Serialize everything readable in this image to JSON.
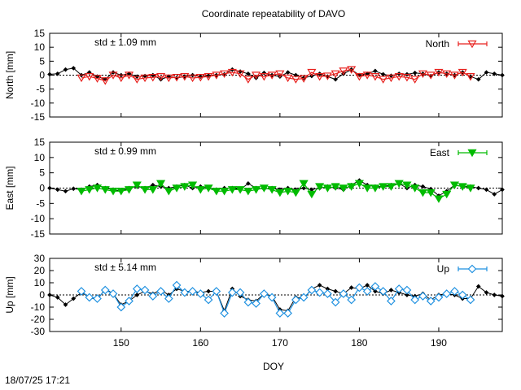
{
  "title": "Coordinate repeatability of DAVO",
  "footer_timestamp": "18/07/25 17:21",
  "chart_data": {
    "type": "line",
    "title": "Coordinate repeatability of DAVO",
    "xlabel": "DOY",
    "xlim": [
      141,
      198
    ],
    "xticks": [
      150,
      160,
      170,
      180,
      190
    ],
    "grid": false,
    "panels": [
      {
        "name": "north",
        "ylabel": "North [mm]",
        "ylim": [
          -15,
          15
        ],
        "yticks": [
          -15,
          -10,
          -5,
          0,
          5,
          10,
          15
        ],
        "std_label": "std ± 1.09 mm",
        "std_color": "#ff0000",
        "legend": "North",
        "legend_position": "top-right",
        "marker": "triangle-down-open",
        "color": "#e8221f",
        "reference": {
          "x": [
            141,
            142,
            143,
            144,
            145,
            146,
            147,
            148,
            149,
            150,
            151,
            152,
            153,
            154,
            155,
            156,
            157,
            158,
            159,
            160,
            161,
            162,
            163,
            164,
            165,
            166,
            167,
            168,
            169,
            170,
            171,
            172,
            173,
            174,
            175,
            176,
            177,
            178,
            179,
            180,
            181,
            182,
            183,
            184,
            185,
            186,
            187,
            188,
            189,
            190,
            191,
            192,
            193,
            194,
            195,
            196,
            197,
            198
          ],
          "y": [
            0.3,
            0.5,
            2,
            2.5,
            0,
            1,
            -0.5,
            -1.5,
            1,
            0,
            0.5,
            -0.5,
            -0.3,
            0,
            -1.5,
            -0.5,
            -1,
            -0.5,
            0,
            -0.5,
            -0.2,
            0,
            0.3,
            2,
            1.3,
            0.5,
            -1,
            0.8,
            0,
            -0.5,
            1,
            0,
            -1,
            -0.3,
            0.5,
            -0.5,
            -1.5,
            0.5,
            2,
            0,
            0.5,
            1.5,
            0.3,
            -0.2,
            0.5,
            0.3,
            0.8,
            0.5,
            -0.3,
            1,
            0.5,
            0,
            1,
            -0.5,
            -1.5,
            1,
            0.5,
            0
          ]
        },
        "series": {
          "x": [
            145,
            146,
            147,
            148,
            149,
            150,
            151,
            152,
            153,
            154,
            155,
            156,
            157,
            158,
            159,
            160,
            161,
            162,
            163,
            164,
            165,
            166,
            167,
            168,
            169,
            170,
            171,
            172,
            173,
            174,
            175,
            176,
            177,
            178,
            179,
            180,
            181,
            182,
            183,
            184,
            185,
            186,
            187,
            188,
            189,
            190,
            191,
            192,
            193,
            194
          ],
          "y": [
            -1,
            -0.5,
            -1.2,
            -2,
            0,
            -1,
            0,
            -1.5,
            -1,
            -0.8,
            -0.5,
            -1,
            -0.8,
            -0.5,
            -1,
            -0.8,
            -0.5,
            0,
            0.5,
            1,
            0.5,
            -1.5,
            0,
            -0.5,
            0,
            0.5,
            -1,
            -1.5,
            -1.2,
            1,
            -0.5,
            -0.3,
            0.5,
            1.5,
            2,
            -0.5,
            0,
            -0.5,
            -1.5,
            -1,
            -0.5,
            -0.8,
            -1.5,
            0.5,
            0,
            1,
            0.5,
            0,
            1,
            -0.5
          ]
        }
      },
      {
        "name": "east",
        "ylabel": "East [mm]",
        "ylim": [
          -15,
          15
        ],
        "yticks": [
          -15,
          -10,
          -5,
          0,
          5,
          10,
          15
        ],
        "std_label": "std ± 0.99 mm",
        "std_color": "#00cc00",
        "legend": "East",
        "legend_position": "top-right",
        "marker": "triangle-down-filled",
        "color": "#00bb00",
        "reference": {
          "x": [
            141,
            142,
            143,
            144,
            145,
            146,
            147,
            148,
            149,
            150,
            151,
            152,
            153,
            154,
            155,
            156,
            157,
            158,
            159,
            160,
            161,
            162,
            163,
            164,
            165,
            166,
            167,
            168,
            169,
            170,
            171,
            172,
            173,
            174,
            175,
            176,
            177,
            178,
            179,
            180,
            181,
            182,
            183,
            184,
            185,
            186,
            187,
            188,
            189,
            190,
            191,
            192,
            193,
            194,
            195,
            196,
            197,
            198
          ],
          "y": [
            0,
            -0.5,
            -1,
            -0.2,
            -0.5,
            0.5,
            1,
            0,
            -0.5,
            -1,
            0,
            0.5,
            0,
            1,
            0.5,
            0,
            0.5,
            1,
            0,
            0.5,
            0,
            -0.5,
            0,
            0,
            -0.5,
            1.5,
            0,
            -0.3,
            0,
            -0.5,
            0,
            -0.5,
            0,
            -0.5,
            0,
            0.5,
            0,
            -0.5,
            1,
            2.5,
            1,
            0.5,
            0.5,
            1,
            1.5,
            0,
            1,
            0.5,
            -0.3,
            -2.5,
            -1,
            1,
            0.5,
            0.5,
            0,
            -0.5,
            -2,
            -0.5
          ]
        },
        "series": {
          "x": [
            145,
            146,
            147,
            148,
            149,
            150,
            151,
            152,
            153,
            154,
            155,
            156,
            157,
            158,
            159,
            160,
            161,
            162,
            163,
            164,
            165,
            166,
            167,
            168,
            169,
            170,
            171,
            172,
            173,
            174,
            175,
            176,
            177,
            178,
            179,
            180,
            181,
            182,
            183,
            184,
            185,
            186,
            187,
            188,
            189,
            190,
            191,
            192,
            193,
            194
          ],
          "y": [
            -1,
            -0.5,
            0,
            -0.5,
            -1,
            -1,
            -0.5,
            1,
            -0.5,
            -0.5,
            1.5,
            -1,
            0,
            0.5,
            1,
            -0.5,
            0,
            -1,
            -1,
            -0.5,
            -0.5,
            -1,
            -0.5,
            0,
            -0.5,
            -1.5,
            -1,
            -1.5,
            1.5,
            -2,
            0.5,
            0,
            0.5,
            0,
            0.5,
            1.5,
            0,
            0,
            0.5,
            0.5,
            1.5,
            1,
            0,
            -1.5,
            -1.5,
            -3.5,
            -2,
            1,
            0.5,
            0
          ]
        }
      },
      {
        "name": "up",
        "ylabel": "Up [mm]",
        "ylim": [
          -30,
          30
        ],
        "yticks": [
          -30,
          -20,
          -10,
          0,
          10,
          20,
          30
        ],
        "std_label": "std ± 5.14 mm",
        "std_color": "#2a8fe0",
        "legend": "Up",
        "legend_position": "top-right",
        "marker": "diamond-open",
        "color": "#1e90e0",
        "reference": {
          "x": [
            141,
            142,
            143,
            144,
            145,
            146,
            147,
            148,
            149,
            150,
            151,
            152,
            153,
            154,
            155,
            156,
            157,
            158,
            159,
            160,
            161,
            162,
            163,
            164,
            165,
            166,
            167,
            168,
            169,
            170,
            171,
            172,
            173,
            174,
            175,
            176,
            177,
            178,
            179,
            180,
            181,
            182,
            183,
            184,
            185,
            186,
            187,
            188,
            189,
            190,
            191,
            192,
            193,
            194,
            195,
            196,
            197,
            198
          ],
          "y": [
            0,
            -2,
            -8,
            -3,
            2,
            -2,
            -4,
            5,
            1,
            -8,
            -5,
            0,
            3,
            1,
            4,
            0,
            5,
            3,
            3,
            2,
            3,
            3,
            -13,
            5,
            -1,
            -4,
            -5,
            1,
            -1,
            -12,
            -13,
            -2,
            -3,
            5,
            8,
            5,
            3,
            1,
            6,
            5,
            8,
            3,
            1,
            4,
            2,
            0,
            -1,
            1,
            -4,
            0,
            1,
            0,
            -3,
            -3,
            7,
            2,
            0,
            -1
          ]
        },
        "series": {
          "x": [
            145,
            146,
            147,
            148,
            149,
            150,
            151,
            152,
            153,
            154,
            155,
            156,
            157,
            158,
            159,
            160,
            161,
            162,
            163,
            164,
            165,
            166,
            167,
            168,
            169,
            170,
            171,
            172,
            173,
            174,
            175,
            176,
            177,
            178,
            179,
            180,
            181,
            182,
            183,
            184,
            185,
            186,
            187,
            188,
            189,
            190,
            191,
            192,
            193,
            194
          ],
          "y": [
            3,
            -2,
            -3,
            4,
            1,
            -10,
            -5,
            5,
            4,
            -1,
            3,
            -3,
            8,
            2,
            3,
            1,
            -4,
            3,
            -15,
            2,
            2,
            -6,
            -7,
            1,
            -2,
            -15,
            -15,
            -4,
            -2,
            4,
            2,
            1,
            -6,
            1,
            -4,
            6,
            3,
            7,
            3,
            -5,
            5,
            4,
            -4,
            -1,
            -5,
            -2,
            1,
            3,
            0,
            -4
          ]
        }
      }
    ]
  }
}
